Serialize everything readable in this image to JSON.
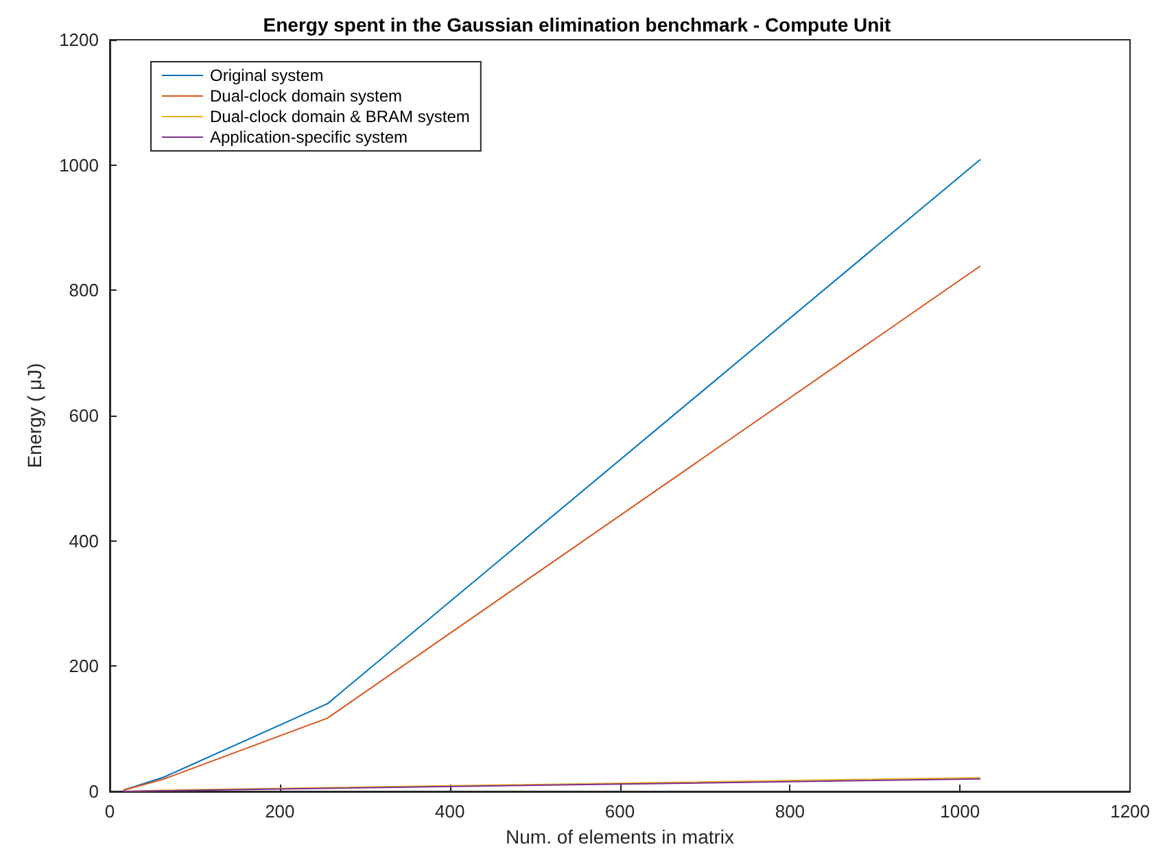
{
  "chart_data": {
    "type": "line",
    "title": "Energy spent in the Gaussian elimination benchmark - Compute Unit",
    "xlabel": "Num. of elements in matrix",
    "ylabel": "Energy ( μJ)",
    "x": [
      16,
      64,
      256,
      1024
    ],
    "series": [
      {
        "name": "Original system",
        "color": "#0072bd",
        "values": [
          2,
          23,
          140,
          1009
        ]
      },
      {
        "name": "Dual-clock domain system",
        "color": "#d95319",
        "values": [
          2,
          20,
          117,
          839
        ]
      },
      {
        "name": "Dual-clock domain & BRAM system",
        "color": "#edb120",
        "values": [
          0,
          2,
          6,
          22
        ]
      },
      {
        "name": "Application-specific system",
        "color": "#7e2f8e",
        "values": [
          0,
          1,
          5,
          20
        ]
      }
    ],
    "xlim": [
      0,
      1200
    ],
    "xticks": [
      0,
      200,
      400,
      600,
      800,
      1000,
      1200
    ],
    "ylim": [
      0,
      1200
    ],
    "yticks": [
      0,
      200,
      400,
      600,
      800,
      1000,
      1200
    ],
    "grid": false,
    "legend": "top left",
    "marker": "none",
    "line_style": "solid"
  }
}
